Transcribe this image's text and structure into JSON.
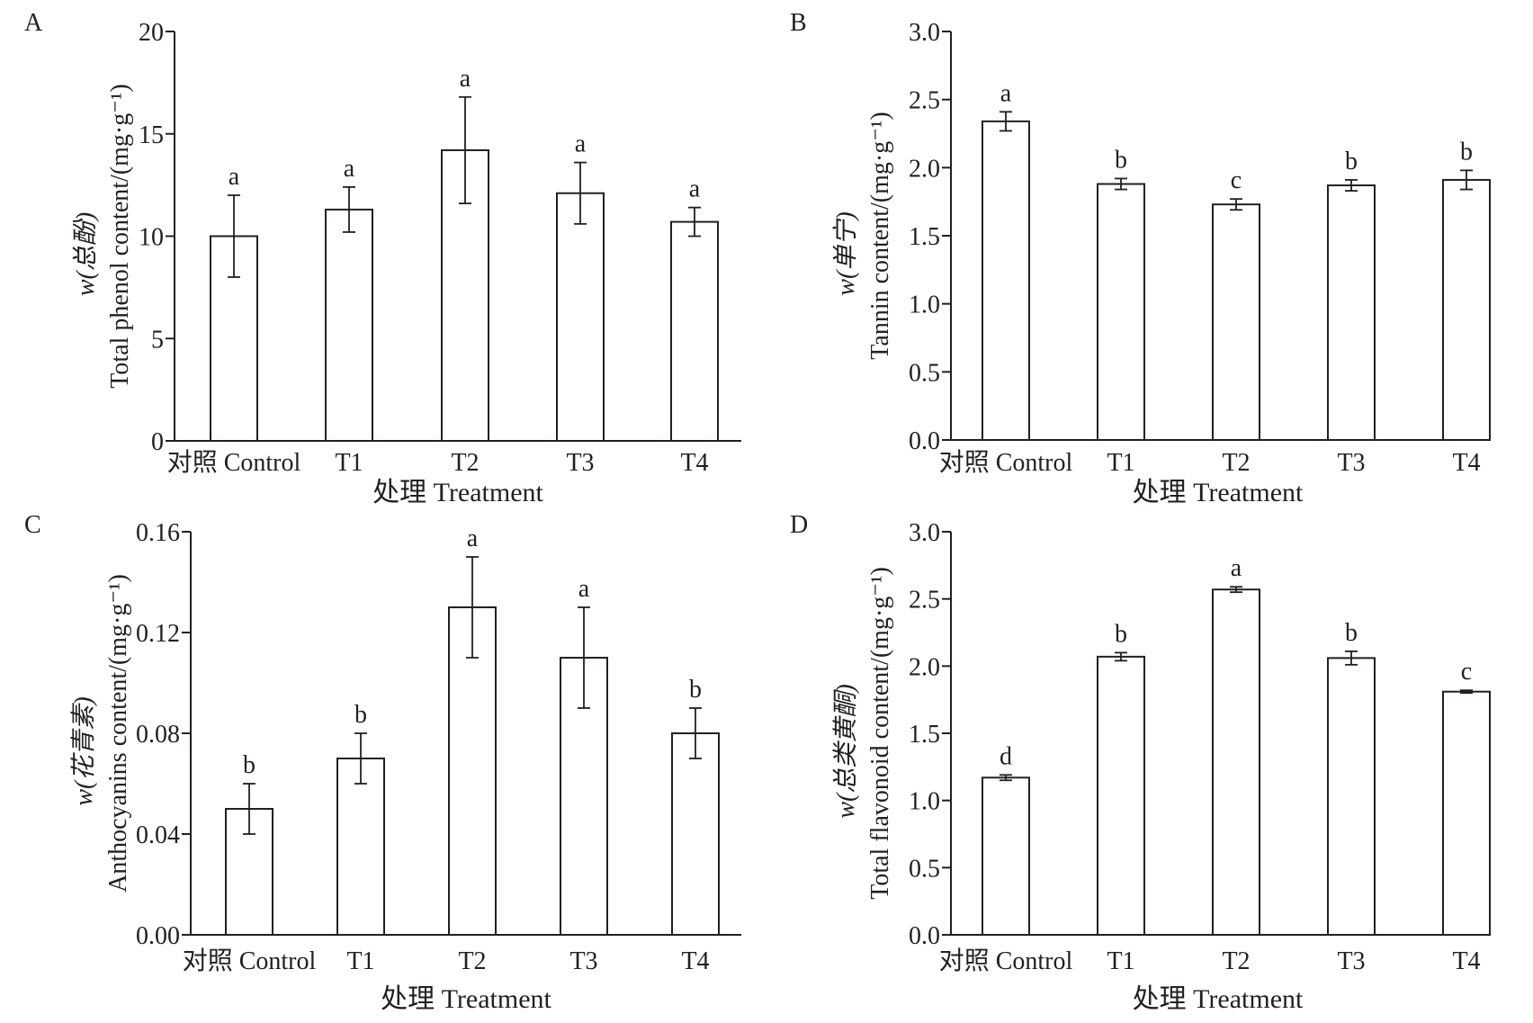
{
  "xlabel": "处理 Treatment",
  "chart_data": [
    {
      "panel": "A",
      "type": "bar",
      "categories": [
        "对照 Control",
        "T1",
        "T2",
        "T3",
        "T4"
      ],
      "values": [
        10.0,
        11.3,
        14.2,
        12.1,
        10.7
      ],
      "errors": [
        2.0,
        1.1,
        2.6,
        1.5,
        0.7
      ],
      "letters": [
        "a",
        "a",
        "a",
        "a",
        "a"
      ],
      "ylim": [
        0,
        20
      ],
      "yticks": [
        "0",
        "5",
        "10",
        "15",
        "20"
      ],
      "ylabel": "w(总酚)",
      "ylabel2": "Total phenol content/(mg·g⁻¹)",
      "xlabel": "处理 Treatment"
    },
    {
      "panel": "B",
      "type": "bar",
      "categories": [
        "对照 Control",
        "T1",
        "T2",
        "T3",
        "T4"
      ],
      "values": [
        2.34,
        1.88,
        1.73,
        1.87,
        1.91
      ],
      "errors": [
        0.07,
        0.04,
        0.04,
        0.04,
        0.07
      ],
      "letters": [
        "a",
        "b",
        "c",
        "b",
        "b"
      ],
      "ylim": [
        0,
        3
      ],
      "yticks": [
        "0.0",
        "0.5",
        "1.0",
        "1.5",
        "2.0",
        "2.5",
        "3.0"
      ],
      "ylabel": "w(单宁)",
      "ylabel2": "Tannin content/(mg·g⁻¹)",
      "xlabel": "处理 Treatment"
    },
    {
      "panel": "C",
      "type": "bar",
      "categories": [
        "对照 Control",
        "T1",
        "T2",
        "T3",
        "T4"
      ],
      "values": [
        0.05,
        0.07,
        0.13,
        0.11,
        0.08
      ],
      "errors": [
        0.01,
        0.01,
        0.02,
        0.02,
        0.01
      ],
      "letters": [
        "b",
        "b",
        "a",
        "a",
        "b"
      ],
      "ylim": [
        0,
        0.16
      ],
      "yticks": [
        "0.00",
        "0.04",
        "0.08",
        "0.12",
        "0.16"
      ],
      "ylabel": "w(花青素)",
      "ylabel2": "Anthocyanins content/(mg·g⁻¹)",
      "xlabel": "处理 Treatment"
    },
    {
      "panel": "D",
      "type": "bar",
      "categories": [
        "对照 Control",
        "T1",
        "T2",
        "T3",
        "T4"
      ],
      "values": [
        1.17,
        2.07,
        2.57,
        2.06,
        1.81
      ],
      "errors": [
        0.02,
        0.03,
        0.02,
        0.05,
        0.01
      ],
      "letters": [
        "d",
        "b",
        "a",
        "b",
        "c"
      ],
      "ylim": [
        0,
        3
      ],
      "yticks": [
        "0.0",
        "0.5",
        "1.0",
        "1.5",
        "2.0",
        "2.5",
        "3.0"
      ],
      "ylabel": "w(总类黄酮)",
      "ylabel2": "Total flavonoid content/(mg·g⁻¹)",
      "xlabel": "处理 Treatment"
    }
  ]
}
